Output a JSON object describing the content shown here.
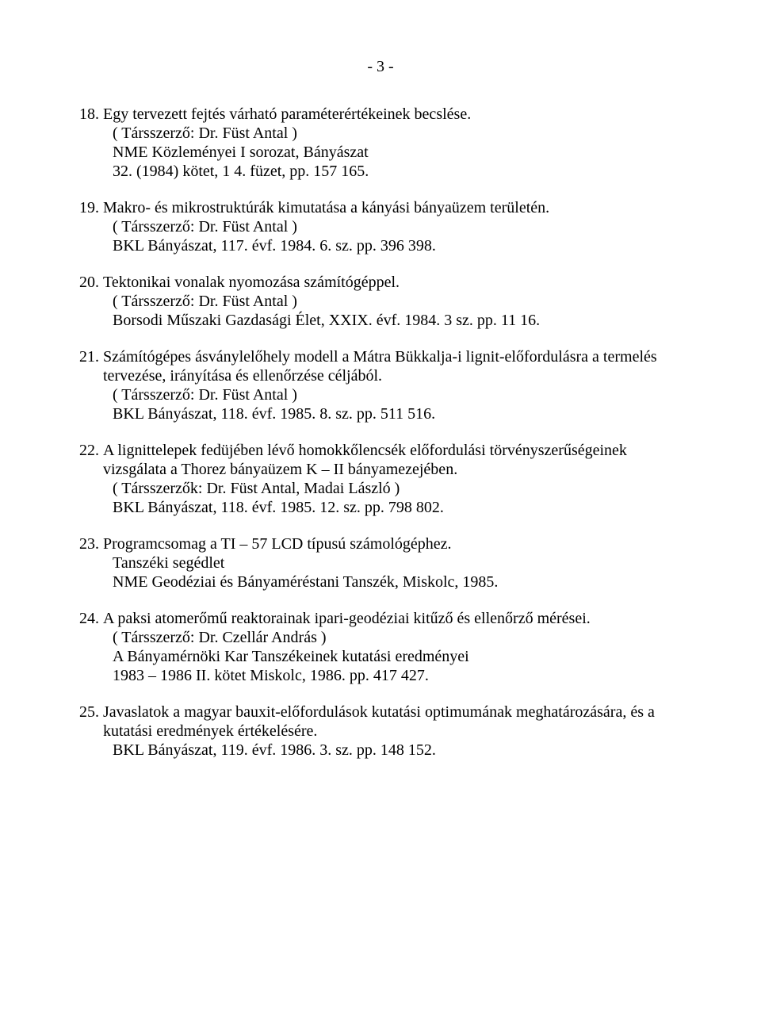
{
  "page_number": "- 3 -",
  "entries": [
    {
      "num": "18. ",
      "title": "Egy tervezett fejtés várható paraméterértékeinek becslése.",
      "lines": [
        "( Társszerző: Dr. Füst Antal )",
        "NME Közleményei I sorozat, Bányászat",
        "32. (1984) kötet, 1 4. füzet, pp. 157 165."
      ]
    },
    {
      "num": "19. ",
      "title": "Makro- és mikrostruktúrák kimutatása a kányási bányaüzem területén.",
      "lines": [
        "( Társszerző: Dr. Füst Antal )",
        "BKL Bányászat, 117. évf. 1984. 6. sz. pp. 396 398."
      ]
    },
    {
      "num": "20. ",
      "title": "Tektonikai vonalak nyomozása számítógéppel.",
      "lines": [
        "( Társszerző: Dr. Füst Antal )",
        "Borsodi Műszaki Gazdasági Élet, XXIX. évf. 1984. 3 sz. pp. 11 16."
      ]
    },
    {
      "num": "21. ",
      "title": "Számítógépes ásványlelőhely modell a Mátra Bükkalja-i lignit-előfordulásra a termelés tervezése, irányítása és ellenőrzése céljából.",
      "lines": [
        "( Társszerző: Dr. Füst Antal )",
        "BKL Bányászat, 118. évf. 1985. 8. sz. pp. 511 516."
      ]
    },
    {
      "num": "22. ",
      "title": "A lignittelepek fedüjében lévő homokkőlencsék előfordulási törvényszerűségeinek vizsgálata a Thorez bányaüzem K – II bányamezejében.",
      "lines": [
        "( Társszerzők: Dr. Füst Antal, Madai László )",
        "BKL Bányászat, 118. évf. 1985. 12. sz. pp. 798 802."
      ]
    },
    {
      "num": "23. ",
      "title": "Programcsomag a TI – 57 LCD típusú számológéphez.",
      "lines": [
        "Tanszéki segédlet",
        "NME Geodéziai és Bányaméréstani Tanszék, Miskolc, 1985."
      ]
    },
    {
      "num": "24. ",
      "title": "A paksi atomerőmű reaktorainak ipari-geodéziai kitűző és ellenőrző mérései.",
      "lines": [
        "( Társszerző: Dr. Czellár András )",
        "A Bányamérnöki Kar Tanszékeinek kutatási eredményei",
        "1983 – 1986 II. kötet Miskolc, 1986. pp. 417 427."
      ]
    },
    {
      "num": "25. ",
      "title": "Javaslatok a magyar bauxit-előfordulások kutatási optimumának meghatározására, és a kutatási eredmények értékelésére.",
      "lines": [
        "BKL Bányászat, 119. évf. 1986. 3. sz. pp. 148 152."
      ]
    }
  ]
}
